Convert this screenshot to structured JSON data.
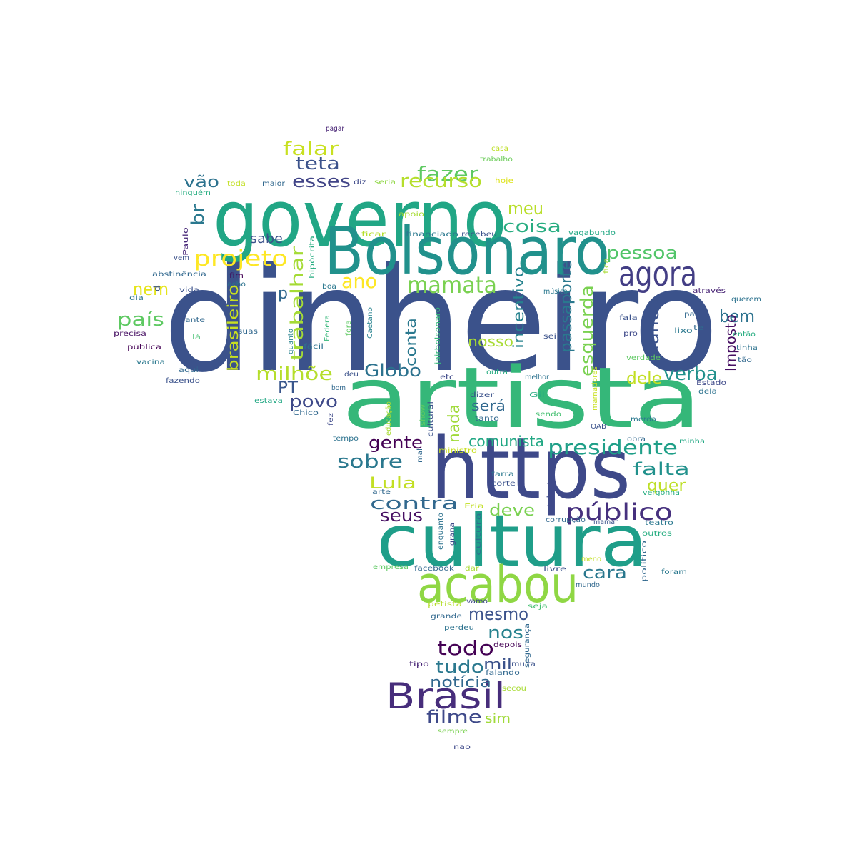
{
  "palette": {
    "p0": "#440154",
    "p1": "#482475",
    "p2": "#414487",
    "p3": "#355f8d",
    "p4": "#2a788e",
    "p5": "#21918c",
    "p6": "#22a884",
    "p7": "#44bf70",
    "p8": "#7ad151",
    "p9": "#bddf26",
    "p10": "#fde725"
  },
  "words": [
    {
      "text": "dinheiro",
      "color": "#3b528b"
    },
    {
      "text": "artista",
      "color": "#35b779"
    },
    {
      "text": "governo",
      "color": "#21a685"
    },
    {
      "text": "Bolsonaro",
      "color": "#21918c"
    },
    {
      "text": "https",
      "color": "#3e4989"
    },
    {
      "text": "cultura",
      "color": "#1f9e89"
    },
    {
      "text": "acabou",
      "color": "#8fd744"
    },
    {
      "text": "Brasil",
      "color": "#472d7b"
    },
    {
      "text": "agora",
      "color": "#433e85"
    },
    {
      "text": "público",
      "color": "#46307e"
    },
    {
      "text": "presidente",
      "color": "#1f9f88"
    },
    {
      "text": "mamata",
      "color": "#7ad151"
    },
    {
      "text": "projeto",
      "color": "#fde725"
    },
    {
      "text": "fazer",
      "color": "#5ec962"
    },
    {
      "text": "recurso",
      "color": "#b5de2b"
    },
    {
      "text": "falar",
      "color": "#c8e020"
    },
    {
      "text": "teta",
      "color": "#3b528b"
    },
    {
      "text": "esses",
      "color": "#414487"
    },
    {
      "text": "meu",
      "color": "#b8de29"
    },
    {
      "text": "coisa",
      "color": "#27ad81"
    },
    {
      "text": "pessoa",
      "color": "#52c569"
    },
    {
      "text": "sabe",
      "color": "#3b528b"
    },
    {
      "text": "vão",
      "color": "#2c728e"
    },
    {
      "text": "br",
      "color": "#2a788e"
    },
    {
      "text": "trabalhar",
      "color": "#a5db36"
    },
    {
      "text": "ano",
      "color": "#fde725"
    },
    {
      "text": "nem",
      "color": "#e5e419"
    },
    {
      "text": "país",
      "color": "#5ec962"
    },
    {
      "text": "p",
      "color": "#31688e"
    },
    {
      "text": "brasileiro",
      "color": "#c8e020"
    },
    {
      "text": "incentivo",
      "color": "#26828e"
    },
    {
      "text": "passaporte",
      "color": "#2a788e"
    },
    {
      "text": "esquerda",
      "color": "#7ad151"
    },
    {
      "text": "nunca",
      "color": "#3b528b"
    },
    {
      "text": "bem",
      "color": "#2c728e"
    },
    {
      "text": "Imposto",
      "color": "#471063"
    },
    {
      "text": "verba",
      "color": "#21918c"
    },
    {
      "text": "dele",
      "color": "#c2df23"
    },
    {
      "text": "conta",
      "color": "#2a788e"
    },
    {
      "text": "nosso",
      "color": "#a8db34"
    },
    {
      "text": "Globo",
      "color": "#2c728e"
    },
    {
      "text": "milhõe",
      "color": "#b5de2b"
    },
    {
      "text": "PT",
      "color": "#39568c"
    },
    {
      "text": "povo",
      "color": "#3e4989"
    },
    {
      "text": "será",
      "color": "#31688e"
    },
    {
      "text": "nada",
      "color": "#a0da39"
    },
    {
      "text": "gente",
      "color": "#440154"
    },
    {
      "text": "comunista",
      "color": "#22a884"
    },
    {
      "text": "sobre",
      "color": "#2a788e"
    },
    {
      "text": "falta",
      "color": "#21918c"
    },
    {
      "text": "quer",
      "color": "#bddf26"
    },
    {
      "text": "Lula",
      "color": "#c2df23"
    },
    {
      "text": "contra",
      "color": "#31688e"
    },
    {
      "text": "seus",
      "color": "#471063"
    },
    {
      "text": "deve",
      "color": "#7ad151"
    },
    {
      "text": "cara",
      "color": "#2a788e"
    },
    {
      "text": "mesmo",
      "color": "#3b528b"
    },
    {
      "text": "nos",
      "color": "#26828e"
    },
    {
      "text": "todo",
      "color": "#440154"
    },
    {
      "text": "tudo",
      "color": "#2a788e"
    },
    {
      "text": "mil",
      "color": "#3b528b"
    },
    {
      "text": "notícia",
      "color": "#31688e"
    },
    {
      "text": "filme",
      "color": "#3e4989"
    },
    {
      "text": "sim",
      "color": "#a0da39"
    },
    {
      "text": "pagar",
      "color": "#482475"
    },
    {
      "text": "casa",
      "color": "#bddf26"
    },
    {
      "text": "trabalho",
      "color": "#6ccd5a"
    },
    {
      "text": "hoje",
      "color": "#dde318"
    },
    {
      "text": "diz",
      "color": "#3e4989"
    },
    {
      "text": "seria",
      "color": "#8fd744"
    },
    {
      "text": "toda",
      "color": "#c2df23"
    },
    {
      "text": "maior",
      "color": "#31688e"
    },
    {
      "text": "ninguém",
      "color": "#27ad81"
    },
    {
      "text": "apoio",
      "color": "#a8db34"
    },
    {
      "text": "ficar",
      "color": "#b5de2b"
    },
    {
      "text": "financiado",
      "color": "#2a788e"
    },
    {
      "text": "recebeu",
      "color": "#3b528b"
    },
    {
      "text": "vagabundo",
      "color": "#22a884"
    },
    {
      "text": "Paulo",
      "color": "#482878"
    },
    {
      "text": "vem",
      "color": "#3b528b"
    },
    {
      "text": "hipócrita",
      "color": "#27ad81"
    },
    {
      "text": "abstinência",
      "color": "#31688e"
    },
    {
      "text": "fim",
      "color": "#440154"
    },
    {
      "text": "acho",
      "color": "#2c728e"
    },
    {
      "text": "boa",
      "color": "#2a788e"
    },
    {
      "text": "vida",
      "color": "#3b528b"
    },
    {
      "text": "dia",
      "color": "#2c728e"
    },
    {
      "text": "ante",
      "color": "#31688e"
    },
    {
      "text": "precisa",
      "color": "#471063"
    },
    {
      "text": "d",
      "color": "#3b528b"
    },
    {
      "text": "lá",
      "color": "#44bf70"
    },
    {
      "text": "suas",
      "color": "#31688e"
    },
    {
      "text": "pública",
      "color": "#440154"
    },
    {
      "text": "vacina",
      "color": "#2a788e"
    },
    {
      "text": "aqui",
      "color": "#31688e"
    },
    {
      "text": "fazendo",
      "color": "#3b528b"
    },
    {
      "text": "estava",
      "color": "#22a884"
    },
    {
      "text": "Chico",
      "color": "#31688e"
    },
    {
      "text": "quanto",
      "color": "#26828e"
    },
    {
      "text": "Federal",
      "color": "#35b779"
    },
    {
      "text": "fora",
      "color": "#5ec962"
    },
    {
      "text": "fácil",
      "color": "#2c728e"
    },
    {
      "text": "Caetano",
      "color": "#26828e"
    },
    {
      "text": "deu",
      "color": "#3b528b"
    },
    {
      "text": "bom",
      "color": "#31688e"
    },
    {
      "text": "jairbolsonaro",
      "color": "#35b779"
    },
    {
      "text": "cultural",
      "color": "#3b528b"
    },
    {
      "text": "etc",
      "color": "#3e4989"
    },
    {
      "text": "outra",
      "color": "#27ad81"
    },
    {
      "text": "melhor",
      "color": "#2c728e"
    },
    {
      "text": "música",
      "color": "#2a788e"
    },
    {
      "text": "fica",
      "color": "#a8db34"
    },
    {
      "text": "através",
      "color": "#482475"
    },
    {
      "text": "querem",
      "color": "#2c728e"
    },
    {
      "text": "pai",
      "color": "#31688e"
    },
    {
      "text": "fala",
      "color": "#3b528b"
    },
    {
      "text": "pro",
      "color": "#3e4989"
    },
    {
      "text": "sei",
      "color": "#3b528b"
    },
    {
      "text": "lixo",
      "color": "#2a788e"
    },
    {
      "text": "te",
      "color": "#31688e"
    },
    {
      "text": "então",
      "color": "#27ad81"
    },
    {
      "text": "tinha",
      "color": "#2c728e"
    },
    {
      "text": "verdade",
      "color": "#5ec962"
    },
    {
      "text": "tão",
      "color": "#31688e"
    },
    {
      "text": "Estado",
      "color": "#3e4989"
    },
    {
      "text": "dela",
      "color": "#2c728e"
    },
    {
      "text": "dizer",
      "color": "#3b528b"
    },
    {
      "text": "Gil",
      "color": "#27ad81"
    },
    {
      "text": "mamadores",
      "color": "#c8e020"
    },
    {
      "text": "tanto",
      "color": "#31688e"
    },
    {
      "text": "sendo",
      "color": "#44bf70"
    },
    {
      "text": "show",
      "color": "#5ec962"
    },
    {
      "text": "merda",
      "color": "#2a788e"
    },
    {
      "text": "OAB",
      "color": "#3b528b"
    },
    {
      "text": "obra",
      "color": "#31688e"
    },
    {
      "text": "fez",
      "color": "#3e4989"
    },
    {
      "text": "tempo",
      "color": "#2c728e"
    },
    {
      "text": "educação",
      "color": "#a8db34"
    },
    {
      "text": "mal",
      "color": "#31688e"
    },
    {
      "text": "ministro",
      "color": "#c8e020"
    },
    {
      "text": "minha",
      "color": "#22a884"
    },
    {
      "text": "farra",
      "color": "#2a788e"
    },
    {
      "text": "corte",
      "color": "#3b528b"
    },
    {
      "text": "vergonha",
      "color": "#27ad81"
    },
    {
      "text": "arte",
      "color": "#31688e"
    },
    {
      "text": "talento",
      "color": "#3e4989"
    },
    {
      "text": "Fria",
      "color": "#c2df23"
    },
    {
      "text": "enquanto",
      "color": "#2c728e"
    },
    {
      "text": "corrupção",
      "color": "#31688e"
    },
    {
      "text": "mamar",
      "color": "#3b528b"
    },
    {
      "text": "teatro",
      "color": "#2a788e"
    },
    {
      "text": "outros",
      "color": "#27ad81"
    },
    {
      "text": "grana",
      "color": "#3e4989"
    },
    {
      "text": "cultura",
      "color": "#2c728e"
    },
    {
      "text": "meno",
      "color": "#c2df23"
    },
    {
      "text": "político",
      "color": "#31688e"
    },
    {
      "text": "empresa",
      "color": "#5ec962"
    },
    {
      "text": "facebook",
      "color": "#31688e"
    },
    {
      "text": "dar",
      "color": "#a8db34"
    },
    {
      "text": "livre",
      "color": "#3b528b"
    },
    {
      "text": "foram",
      "color": "#2a788e"
    },
    {
      "text": "mundo",
      "color": "#31688e"
    },
    {
      "text": "petista",
      "color": "#b5de2b"
    },
    {
      "text": "vamo",
      "color": "#3e4989"
    },
    {
      "text": "seja",
      "color": "#44bf70"
    },
    {
      "text": "grande",
      "color": "#31688e"
    },
    {
      "text": "perdeu",
      "color": "#2c728e"
    },
    {
      "text": "segurança",
      "color": "#31688e"
    },
    {
      "text": "depois",
      "color": "#440154"
    },
    {
      "text": "tipo",
      "color": "#482475"
    },
    {
      "text": "muita",
      "color": "#3b528b"
    },
    {
      "text": "falando",
      "color": "#31688e"
    },
    {
      "text": "secou",
      "color": "#a8db34"
    },
    {
      "text": "sempre",
      "color": "#7ad151"
    },
    {
      "text": "nao",
      "color": "#3e4989"
    }
  ]
}
